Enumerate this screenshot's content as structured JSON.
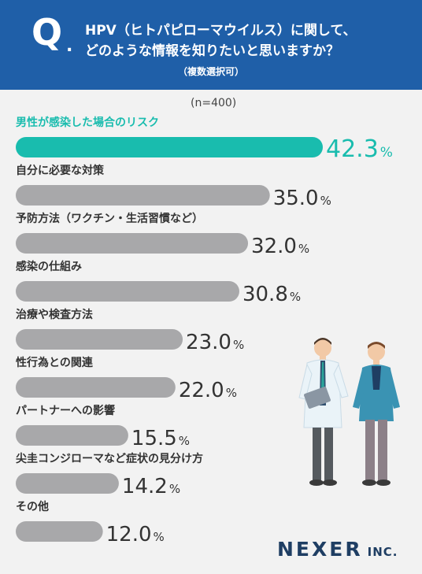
{
  "header": {
    "q_mark": "Q",
    "q_dot": ".",
    "line1": "HPV（ヒトパピローマウイルス）に関して、",
    "line2": "どのような情報を知りたいと思いますか？",
    "note": "（複数選択可）"
  },
  "sample_label": "(n=400)",
  "logo": {
    "main": "NEXER",
    "inc": "INC."
  },
  "colors": {
    "header": "#1f5fa8",
    "highlight": "#19bcae",
    "bar": "#a8a8aa",
    "panel": "#f2f2f2",
    "text": "#333333"
  },
  "chart_data": {
    "type": "bar",
    "orientation": "horizontal",
    "unit": "%",
    "categories": [
      "男性が感染した場合のリスク",
      "自分に必要な対策",
      "予防方法（ワクチン・生活習慣など）",
      "感染の仕組み",
      "治療や検査方法",
      "性行為との関連",
      "パートナーへの影響",
      "尖圭コンジローマなど症状の見分け方",
      "その他"
    ],
    "values": [
      42.3,
      35.0,
      32.0,
      30.8,
      23.0,
      22.0,
      15.5,
      14.2,
      12.0
    ],
    "value_labels": [
      "42.3",
      "35.0",
      "32.0",
      "30.8",
      "23.0",
      "22.0",
      "15.5",
      "14.2",
      "12.0"
    ],
    "highlight_index": 0,
    "xlim": [
      0,
      42.3
    ],
    "grid": false,
    "legend": "none"
  }
}
